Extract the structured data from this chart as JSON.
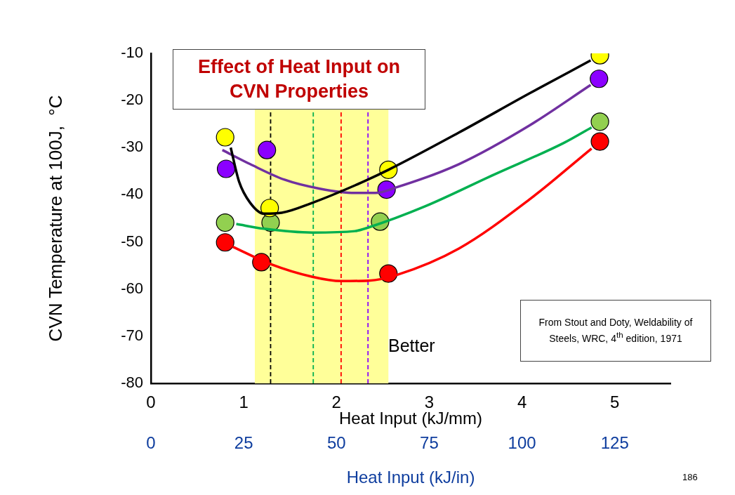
{
  "chart_data": {
    "type": "scatter",
    "title": "Effect of Heat Input on CVN Properties",
    "xlabel": "Heat Input (kJ/mm)",
    "x2label": "Heat Input (kJ/in)",
    "ylabel": "CVN Temperature at 100J,  °C",
    "xlim": [
      0,
      5.6
    ],
    "xticks": [
      0,
      1,
      2,
      3,
      4,
      5
    ],
    "x2lim": [
      0,
      140
    ],
    "x2ticks": [
      0,
      25,
      50,
      75,
      100,
      125
    ],
    "ylim": [
      -80,
      -10
    ],
    "yticks": [
      -80,
      -70,
      -60,
      -50,
      -40,
      -30,
      -20,
      -10
    ],
    "grid": false,
    "legend": false,
    "series": [
      {
        "type": "line",
        "marker": "none",
        "color": "#000000",
        "x": [
          0.86,
          0.95,
          1.07,
          1.22,
          1.41,
          1.74,
          2.2,
          2.56,
          3.32,
          4.08,
          4.74
        ],
        "values": [
          -30,
          -37.2,
          -41.7,
          -44,
          -43.8,
          -41.7,
          -38,
          -34.7,
          -26.8,
          -18.5,
          -11.5
        ]
      },
      {
        "type": "line",
        "marker": "none",
        "color": "#7030a0",
        "x": [
          0.77,
          1.07,
          1.44,
          1.82,
          2.2,
          2.42,
          2.65,
          3.32,
          4.08,
          4.74
        ],
        "values": [
          -30.5,
          -33.5,
          -36.8,
          -38.7,
          -39.6,
          -39.6,
          -38.4,
          -33.5,
          -25.3,
          -16.7
        ]
      },
      {
        "type": "line",
        "marker": "none",
        "color": "#00b050",
        "x": [
          0.92,
          1.22,
          1.74,
          2.2,
          2.35,
          2.95,
          3.7,
          4.45,
          4.75
        ],
        "values": [
          -46.2,
          -47.2,
          -48,
          -47.7,
          -46.9,
          -42.5,
          -35.7,
          -29,
          -25.7
        ]
      },
      {
        "type": "line",
        "marker": "none",
        "color": "#ff0000",
        "x": [
          0.88,
          1.29,
          1.74,
          2.05,
          2.35,
          2.65,
          3.32,
          4.08,
          4.75
        ],
        "values": [
          -51,
          -54.7,
          -57.4,
          -58.3,
          -58.2,
          -57,
          -51.4,
          -41,
          -30.2
        ]
      },
      {
        "type": "scatter",
        "marker": "circle",
        "color": "#ffff00",
        "x": [
          0.8,
          1.28,
          2.56,
          4.84
        ],
        "values": [
          -27.8,
          -42.8,
          -34.7,
          -10.4
        ]
      },
      {
        "type": "scatter",
        "marker": "circle",
        "color": "#8b00ff",
        "x": [
          0.81,
          1.25,
          2.54,
          4.83
        ],
        "values": [
          -34.5,
          -30.5,
          -38.9,
          -15.4
        ]
      },
      {
        "type": "scatter",
        "marker": "circle",
        "color": "#92d050",
        "x": [
          0.8,
          1.29,
          2.47,
          4.84
        ],
        "values": [
          -45.9,
          -45.9,
          -45.7,
          -24.5
        ]
      },
      {
        "type": "scatter",
        "marker": "circle",
        "color": "#ff0000",
        "x": [
          0.8,
          1.19,
          2.56,
          4.84
        ],
        "values": [
          -50.1,
          -54.3,
          -56.7,
          -28.7
        ]
      }
    ],
    "bands": [
      {
        "axis": "x",
        "from": 1.12,
        "to": 2.56,
        "color": "#ffff99"
      }
    ],
    "ref_lines": [
      {
        "axis": "x",
        "value": 1.29,
        "color": "#000000",
        "line_style": "dashed"
      },
      {
        "axis": "x",
        "value": 1.75,
        "color": "#00b050",
        "line_style": "dashed"
      },
      {
        "axis": "x",
        "value": 2.05,
        "color": "#ff0000",
        "line_style": "dashed"
      },
      {
        "axis": "x",
        "value": 2.34,
        "color": "#8b00ff",
        "line_style": "dashed"
      }
    ],
    "annotations": [
      "Better",
      "From Stout and Doty, Weldability of Steels, WRC, 4$^{th}$ edition, 1971",
      "186"
    ]
  }
}
